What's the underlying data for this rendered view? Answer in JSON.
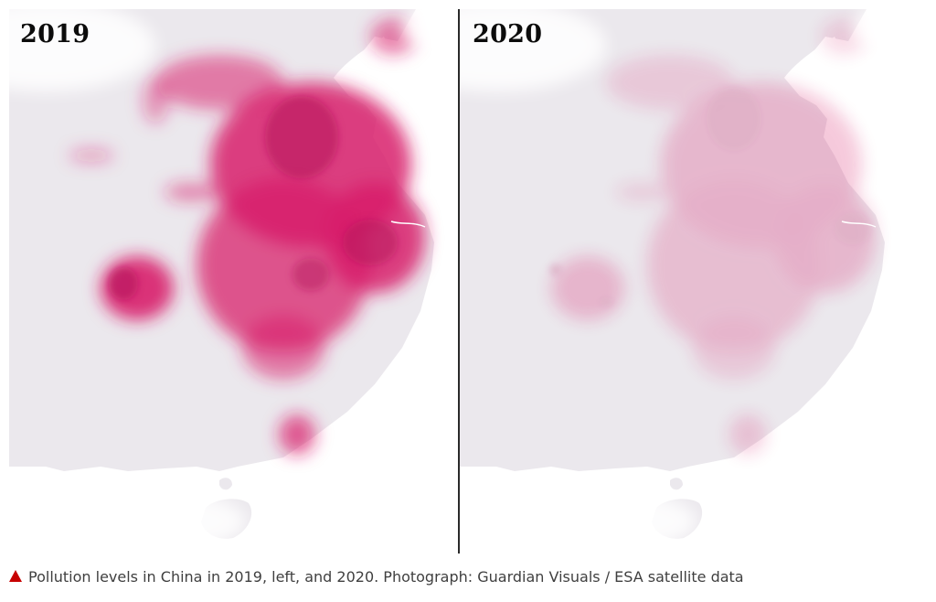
{
  "panels": [
    {
      "year": "2019",
      "intensity": 1.0
    },
    {
      "year": "2020",
      "intensity": 0.28
    }
  ],
  "caption": {
    "icon": "red-triangle-icon",
    "text": "Pollution levels in China in 2019, left, and 2020. Photograph: Guardian Visuals / ESA satellite data"
  },
  "colors": {
    "land": "#ebe8ed",
    "pollution": "#d81f6b",
    "divider": "#2a2a2a",
    "caption_icon": "#c70000"
  }
}
